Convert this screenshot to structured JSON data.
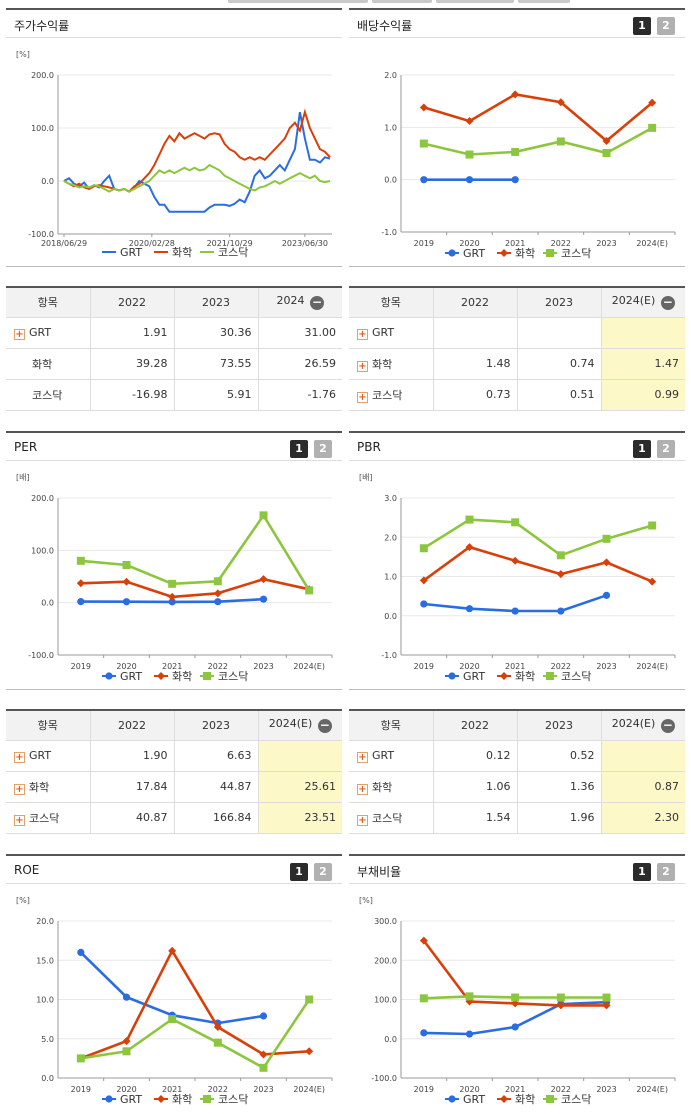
{
  "panels": {
    "stock_return": {
      "title": "주가수익률"
    },
    "dividend": {
      "title": "배당수익률",
      "btn1": "1",
      "btn2": "2"
    },
    "per": {
      "title": "PER",
      "btn1": "1",
      "btn2": "2"
    },
    "pbr": {
      "title": "PBR",
      "btn1": "1",
      "btn2": "2"
    },
    "roe": {
      "title": "ROE",
      "btn1": "1",
      "btn2": "2"
    },
    "debt": {
      "title": "부채비율",
      "btn1": "1",
      "btn2": "2"
    }
  },
  "colors": {
    "GRT": "#2a6de0",
    "화학": "#d8400a",
    "코스닥": "#8cc63e"
  },
  "chart_data": [
    {
      "id": "stock_return",
      "type": "line",
      "unit": "[%]",
      "ylim": [
        -100,
        200
      ],
      "yticks": [
        "200.0",
        "100.0",
        "0.0",
        "-100.0"
      ],
      "xticks": [
        "2018/06/29",
        "2020/02/28",
        "2021/10/29",
        "2023/06/30"
      ],
      "legend": [
        "GRT",
        "화학",
        "코스닥"
      ],
      "series": [
        {
          "name": "GRT",
          "points": [
            [
              0,
              0
            ],
            [
              2,
              5
            ],
            [
              4,
              -5
            ],
            [
              6,
              -10
            ],
            [
              8,
              -3
            ],
            [
              10,
              -15
            ],
            [
              12,
              -8
            ],
            [
              14,
              -12
            ],
            [
              16,
              0
            ],
            [
              18,
              10
            ],
            [
              20,
              -15
            ],
            [
              22,
              -18
            ],
            [
              24,
              -15
            ],
            [
              26,
              -20
            ],
            [
              28,
              -12
            ],
            [
              30,
              0
            ],
            [
              32,
              -5
            ],
            [
              34,
              -10
            ],
            [
              36,
              -30
            ],
            [
              38,
              -45
            ],
            [
              40,
              -45
            ],
            [
              42,
              -58
            ],
            [
              44,
              -58
            ],
            [
              46,
              -58
            ],
            [
              48,
              -58
            ],
            [
              50,
              -58
            ],
            [
              52,
              -58
            ],
            [
              54,
              -58
            ],
            [
              56,
              -58
            ],
            [
              58,
              -50
            ],
            [
              60,
              -45
            ],
            [
              62,
              -45
            ],
            [
              64,
              -45
            ],
            [
              66,
              -47
            ],
            [
              68,
              -43
            ],
            [
              70,
              -35
            ],
            [
              72,
              -40
            ],
            [
              74,
              -20
            ],
            [
              76,
              10
            ],
            [
              78,
              20
            ],
            [
              80,
              5
            ],
            [
              82,
              10
            ],
            [
              84,
              20
            ],
            [
              86,
              30
            ],
            [
              88,
              20
            ],
            [
              90,
              40
            ],
            [
              92,
              60
            ],
            [
              94,
              130
            ],
            [
              96,
              80
            ],
            [
              98,
              40
            ],
            [
              100,
              40
            ],
            [
              102,
              35
            ],
            [
              104,
              45
            ],
            [
              106,
              42
            ]
          ]
        },
        {
          "name": "화학",
          "points": [
            [
              0,
              0
            ],
            [
              2,
              -5
            ],
            [
              4,
              -10
            ],
            [
              6,
              -5
            ],
            [
              8,
              -12
            ],
            [
              10,
              -15
            ],
            [
              12,
              -10
            ],
            [
              14,
              -8
            ],
            [
              16,
              -10
            ],
            [
              18,
              -12
            ],
            [
              20,
              -15
            ],
            [
              22,
              -18
            ],
            [
              24,
              -15
            ],
            [
              26,
              -20
            ],
            [
              28,
              -10
            ],
            [
              30,
              -5
            ],
            [
              32,
              5
            ],
            [
              34,
              15
            ],
            [
              36,
              30
            ],
            [
              38,
              50
            ],
            [
              40,
              70
            ],
            [
              42,
              85
            ],
            [
              44,
              75
            ],
            [
              46,
              90
            ],
            [
              48,
              80
            ],
            [
              50,
              85
            ],
            [
              52,
              90
            ],
            [
              54,
              85
            ],
            [
              56,
              80
            ],
            [
              58,
              88
            ],
            [
              60,
              90
            ],
            [
              62,
              88
            ],
            [
              64,
              70
            ],
            [
              66,
              60
            ],
            [
              68,
              55
            ],
            [
              70,
              45
            ],
            [
              72,
              40
            ],
            [
              74,
              45
            ],
            [
              76,
              40
            ],
            [
              78,
              45
            ],
            [
              80,
              40
            ],
            [
              82,
              50
            ],
            [
              84,
              60
            ],
            [
              86,
              70
            ],
            [
              88,
              80
            ],
            [
              90,
              100
            ],
            [
              92,
              110
            ],
            [
              94,
              95
            ],
            [
              96,
              130
            ],
            [
              98,
              100
            ],
            [
              100,
              80
            ],
            [
              102,
              60
            ],
            [
              104,
              55
            ],
            [
              106,
              45
            ]
          ]
        },
        {
          "name": "코스닥",
          "points": [
            [
              0,
              0
            ],
            [
              2,
              -5
            ],
            [
              4,
              -8
            ],
            [
              6,
              -12
            ],
            [
              8,
              -10
            ],
            [
              10,
              -12
            ],
            [
              12,
              -8
            ],
            [
              14,
              -10
            ],
            [
              16,
              -15
            ],
            [
              18,
              -20
            ],
            [
              20,
              -15
            ],
            [
              22,
              -18
            ],
            [
              24,
              -15
            ],
            [
              26,
              -20
            ],
            [
              28,
              -15
            ],
            [
              30,
              -10
            ],
            [
              32,
              -5
            ],
            [
              34,
              0
            ],
            [
              36,
              10
            ],
            [
              38,
              20
            ],
            [
              40,
              15
            ],
            [
              42,
              20
            ],
            [
              44,
              15
            ],
            [
              46,
              20
            ],
            [
              48,
              25
            ],
            [
              50,
              20
            ],
            [
              52,
              25
            ],
            [
              54,
              20
            ],
            [
              56,
              22
            ],
            [
              58,
              30
            ],
            [
              60,
              25
            ],
            [
              62,
              20
            ],
            [
              64,
              10
            ],
            [
              66,
              5
            ],
            [
              68,
              0
            ],
            [
              70,
              -5
            ],
            [
              72,
              -10
            ],
            [
              74,
              -15
            ],
            [
              76,
              -18
            ],
            [
              78,
              -12
            ],
            [
              80,
              -10
            ],
            [
              82,
              -5
            ],
            [
              84,
              0
            ],
            [
              86,
              -5
            ],
            [
              88,
              0
            ],
            [
              90,
              5
            ],
            [
              92,
              10
            ],
            [
              94,
              15
            ],
            [
              96,
              10
            ],
            [
              98,
              5
            ],
            [
              100,
              10
            ],
            [
              102,
              0
            ],
            [
              104,
              -2
            ],
            [
              106,
              0
            ]
          ]
        }
      ]
    },
    {
      "id": "dividend",
      "type": "line",
      "ylim": [
        -1,
        2
      ],
      "yticks": [
        "2.0",
        "1.0",
        "0.0",
        "-1.0"
      ],
      "categories": [
        "2019",
        "2020",
        "2021",
        "2022",
        "2023",
        "2024(E)"
      ],
      "legend": [
        "GRT",
        "화학",
        "코스닥"
      ],
      "series": [
        {
          "name": "GRT",
          "values": [
            0.0,
            0.0,
            0.0,
            null,
            null,
            null
          ]
        },
        {
          "name": "화학",
          "values": [
            1.38,
            1.12,
            1.63,
            1.48,
            0.74,
            1.47
          ]
        },
        {
          "name": "코스닥",
          "values": [
            0.69,
            0.48,
            0.53,
            0.73,
            0.51,
            0.99
          ]
        }
      ]
    },
    {
      "id": "per",
      "type": "line",
      "unit": "[배]",
      "ylim": [
        -100,
        200
      ],
      "yticks": [
        "200.0",
        "100.0",
        "0.0",
        "-100.0"
      ],
      "categories": [
        "2019",
        "2020",
        "2021",
        "2022",
        "2023",
        "2024(E)"
      ],
      "legend": [
        "GRT",
        "화학",
        "코스닥"
      ],
      "series": [
        {
          "name": "GRT",
          "values": [
            2.0,
            1.8,
            1.5,
            1.9,
            6.63,
            null
          ]
        },
        {
          "name": "화학",
          "values": [
            37,
            40,
            11,
            17.84,
            44.87,
            25.61
          ]
        },
        {
          "name": "코스닥",
          "values": [
            80,
            72,
            36,
            40.87,
            166.84,
            23.51
          ]
        }
      ]
    },
    {
      "id": "pbr",
      "type": "line",
      "unit": "[배]",
      "ylim": [
        -1,
        3
      ],
      "yticks": [
        "3.0",
        "2.0",
        "1.0",
        "0.0",
        "-1.0"
      ],
      "categories": [
        "2019",
        "2020",
        "2021",
        "2022",
        "2023",
        "2024(E)"
      ],
      "legend": [
        "GRT",
        "화학",
        "코스닥"
      ],
      "series": [
        {
          "name": "GRT",
          "values": [
            0.3,
            0.18,
            0.12,
            0.12,
            0.52,
            null
          ]
        },
        {
          "name": "화학",
          "values": [
            0.9,
            1.75,
            1.4,
            1.06,
            1.36,
            0.87
          ]
        },
        {
          "name": "코스닥",
          "values": [
            1.72,
            2.45,
            2.38,
            1.54,
            1.96,
            2.3
          ]
        }
      ]
    },
    {
      "id": "roe",
      "type": "line",
      "unit": "[%]",
      "ylim": [
        0,
        20
      ],
      "yticks": [
        "20.0",
        "15.0",
        "10.0",
        "5.0",
        "0.0"
      ],
      "categories": [
        "2019",
        "2020",
        "2021",
        "2022",
        "2023",
        "2024(E)"
      ],
      "legend": [
        "GRT",
        "화학",
        "코스닥"
      ],
      "series": [
        {
          "name": "GRT",
          "values": [
            16.0,
            10.3,
            8.0,
            7.0,
            7.9,
            null
          ]
        },
        {
          "name": "화학",
          "values": [
            2.5,
            4.7,
            16.2,
            6.5,
            3.0,
            3.4
          ]
        },
        {
          "name": "코스닥",
          "values": [
            2.5,
            3.4,
            7.5,
            4.5,
            1.3,
            10.0
          ]
        }
      ]
    },
    {
      "id": "debt",
      "type": "line",
      "unit": "[%]",
      "ylim": [
        -100,
        300
      ],
      "yticks": [
        "300.0",
        "200.0",
        "100.0",
        "0.0",
        "-100.0"
      ],
      "categories": [
        "2019",
        "2020",
        "2021",
        "2022",
        "2023",
        "2024(E)"
      ],
      "legend": [
        "GRT",
        "화학",
        "코스닥"
      ],
      "series": [
        {
          "name": "GRT",
          "values": [
            15,
            12,
            30,
            88,
            93,
            null
          ]
        },
        {
          "name": "화학",
          "values": [
            250,
            95,
            90,
            85,
            85,
            null
          ]
        },
        {
          "name": "코스닥",
          "values": [
            103,
            108,
            105,
            105,
            105,
            null
          ]
        }
      ]
    }
  ],
  "tables": {
    "stock_return": {
      "headers": [
        "항목",
        "2022",
        "2023",
        "2024"
      ],
      "rows": [
        [
          "GRT",
          "1.91",
          "30.36",
          "31.00"
        ],
        [
          "화학",
          "39.28",
          "73.55",
          "26.59"
        ],
        [
          "코스닥",
          "-16.98",
          "5.91",
          "-1.76"
        ]
      ]
    },
    "dividend": {
      "headers": [
        "항목",
        "2022",
        "2023",
        "2024(E)"
      ],
      "rows": [
        [
          "GRT",
          "",
          "",
          ""
        ],
        [
          "화학",
          "1.48",
          "0.74",
          "1.47"
        ],
        [
          "코스닥",
          "0.73",
          "0.51",
          "0.99"
        ]
      ]
    },
    "per": {
      "headers": [
        "항목",
        "2022",
        "2023",
        "2024(E)"
      ],
      "rows": [
        [
          "GRT",
          "1.90",
          "6.63",
          ""
        ],
        [
          "화학",
          "17.84",
          "44.87",
          "25.61"
        ],
        [
          "코스닥",
          "40.87",
          "166.84",
          "23.51"
        ]
      ]
    },
    "pbr": {
      "headers": [
        "항목",
        "2022",
        "2023",
        "2024(E)"
      ],
      "rows": [
        [
          "GRT",
          "0.12",
          "0.52",
          ""
        ],
        [
          "화학",
          "1.06",
          "1.36",
          "0.87"
        ],
        [
          "코스닥",
          "1.54",
          "1.96",
          "2.30"
        ]
      ]
    }
  }
}
